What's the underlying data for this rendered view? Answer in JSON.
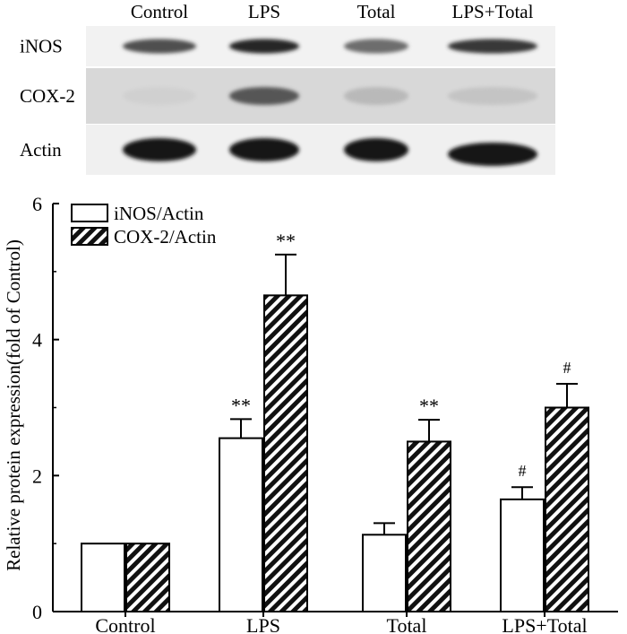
{
  "blot": {
    "lanes": [
      "Control",
      "LPS",
      "Total",
      "LPS+Total"
    ],
    "rows": [
      {
        "label": "iNOS",
        "intensity": [
          0.75,
          0.92,
          0.62,
          0.85
        ],
        "background": "#f2f2f2"
      },
      {
        "label": "COX-2",
        "intensity": [
          0.2,
          0.72,
          0.3,
          0.25
        ],
        "background": "#d8d8d8"
      },
      {
        "label": "Actin",
        "intensity": [
          1.0,
          1.0,
          1.0,
          1.0
        ],
        "background": "#f0f0f0"
      }
    ]
  },
  "chart_data": {
    "type": "bar",
    "title": "",
    "xlabel": "",
    "ylabel": "Relative protein expression(fold of Control)",
    "ylim": [
      0,
      6
    ],
    "yticks": [
      0,
      2,
      4,
      6
    ],
    "categories": [
      "Control",
      "LPS",
      "Total",
      "LPS+Total"
    ],
    "legend_position": "top-left",
    "grid": false,
    "series": [
      {
        "name": "iNOS/Actin",
        "fill": "white",
        "values": [
          1.0,
          2.55,
          1.13,
          1.65
        ],
        "errors": [
          0,
          0.28,
          0.17,
          0.18
        ],
        "annotations": [
          "",
          "**",
          "",
          "#"
        ]
      },
      {
        "name": "COX-2/Actin",
        "fill": "hatched",
        "values": [
          1.0,
          4.65,
          2.5,
          3.0
        ],
        "errors": [
          0,
          0.6,
          0.32,
          0.35
        ],
        "annotations": [
          "",
          "**",
          "**",
          "#"
        ]
      }
    ]
  }
}
